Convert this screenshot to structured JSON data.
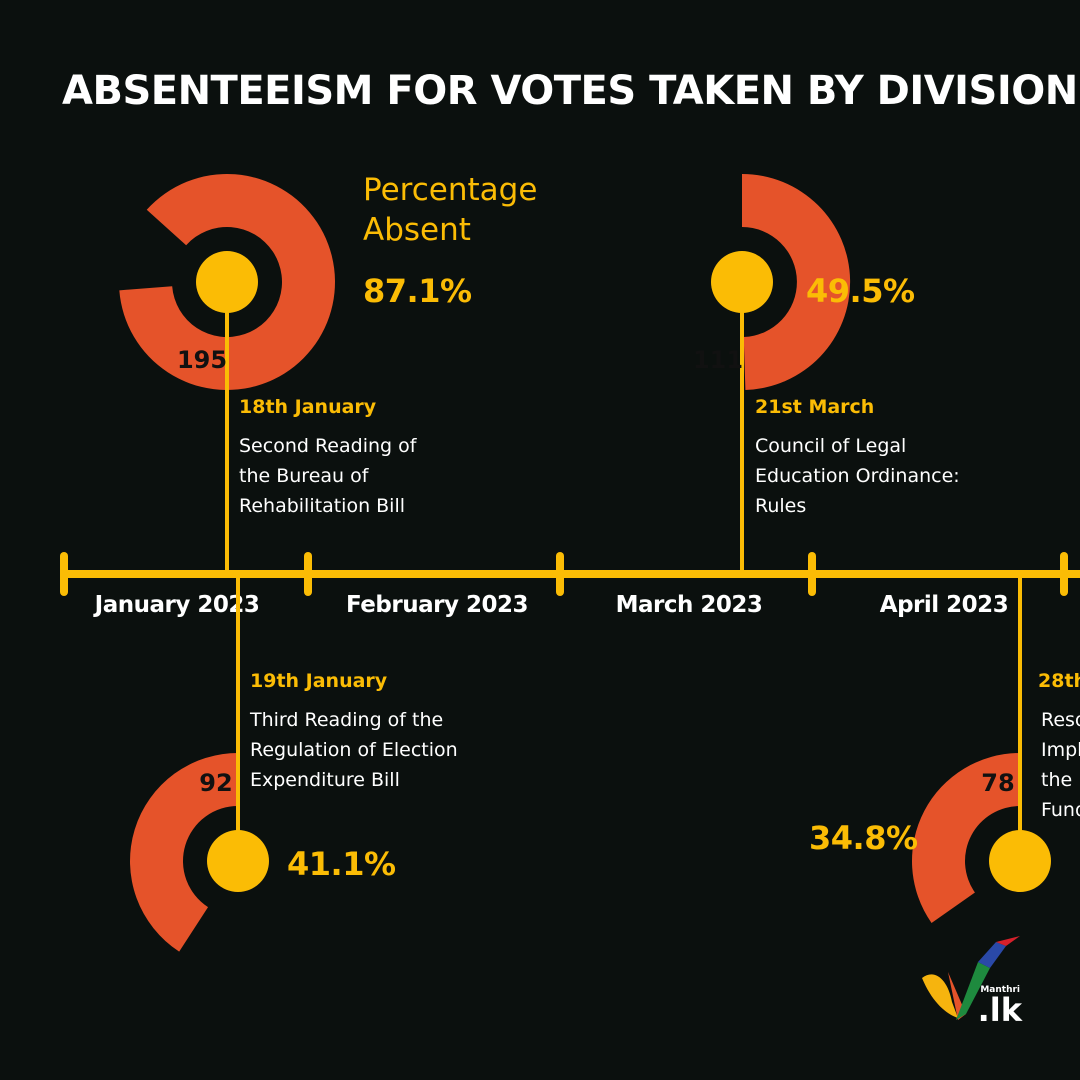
{
  "colors": {
    "background": "#0b100e",
    "accent": "#fbbc05",
    "ring": "#e5532a",
    "text": "#ffffff",
    "count_text": "#111111"
  },
  "chart_data": {
    "type": "timeline-donut",
    "title": "ABSENTEEISM FOR VOTES TAKEN BY DIVISION",
    "legend_label": [
      "Percentage",
      "Absent"
    ],
    "months": [
      "January 2023",
      "February 2023",
      "March 2023",
      "April 2023"
    ],
    "events": [
      {
        "date": "18th January",
        "month_index": 0,
        "description": [
          "Second Reading of",
          "the Bureau of",
          "Rehabilitation Bill"
        ],
        "percent_absent": 87.1,
        "percent_label": "87.1%",
        "absent_count": "195",
        "position": "above"
      },
      {
        "date": "19th January",
        "month_index": 0,
        "description": [
          "Third Reading of the",
          "Regulation of Election",
          "Expenditure Bill"
        ],
        "percent_absent": 41.1,
        "percent_label": "41.1%",
        "absent_count": "92",
        "position": "below"
      },
      {
        "date": "21st March",
        "month_index": 2,
        "description": [
          "Council of Legal",
          "Education Ordinance:",
          "Rules"
        ],
        "percent_absent": 49.5,
        "percent_label": "49.5%",
        "absent_count": "111",
        "position": "above"
      },
      {
        "date": "28th",
        "month_index": 3,
        "description": [
          "Reso",
          "Imple",
          "the I",
          "Fund"
        ],
        "percent_absent": 34.8,
        "percent_label": "34.8%",
        "absent_count": "78",
        "position": "below"
      }
    ]
  },
  "logo": {
    "small_text": "Manthri",
    "main_text": ".lk",
    "colors": [
      "#f6b40e",
      "#e5532a",
      "#1e8a3e",
      "#2a49a8",
      "#d6202b"
    ]
  }
}
